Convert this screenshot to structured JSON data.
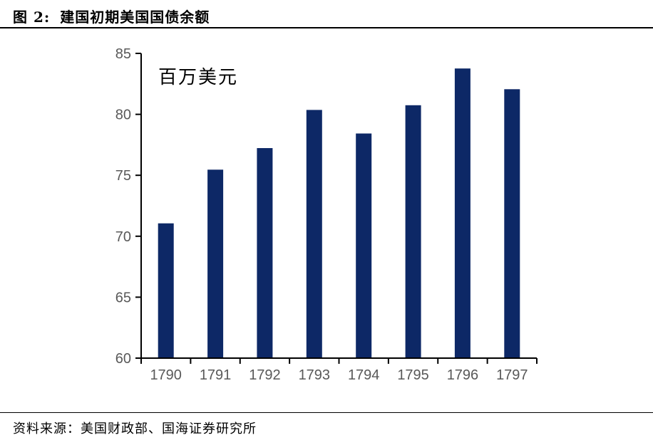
{
  "header": {
    "title_prefix": "图 2:",
    "title": "建国初期美国国债余额"
  },
  "footer": {
    "source": "资料来源：美国财政部、国海证券研究所"
  },
  "chart_data": {
    "type": "bar",
    "title": "建国初期美国国债余额",
    "unit_label": "百万美元",
    "categories": [
      "1790",
      "1791",
      "1792",
      "1793",
      "1794",
      "1795",
      "1796",
      "1797"
    ],
    "values": [
      71.06,
      75.46,
      77.23,
      80.36,
      78.43,
      80.75,
      83.76,
      82.06
    ],
    "xlabel": "",
    "ylabel": "百万美元",
    "ylim": [
      60,
      85
    ],
    "yticks": [
      60,
      65,
      70,
      75,
      80,
      85
    ],
    "grid": false,
    "legend": "none",
    "bar_color": "#0D2866",
    "axis_color": "#000000",
    "tick_label_color": "#595959"
  }
}
